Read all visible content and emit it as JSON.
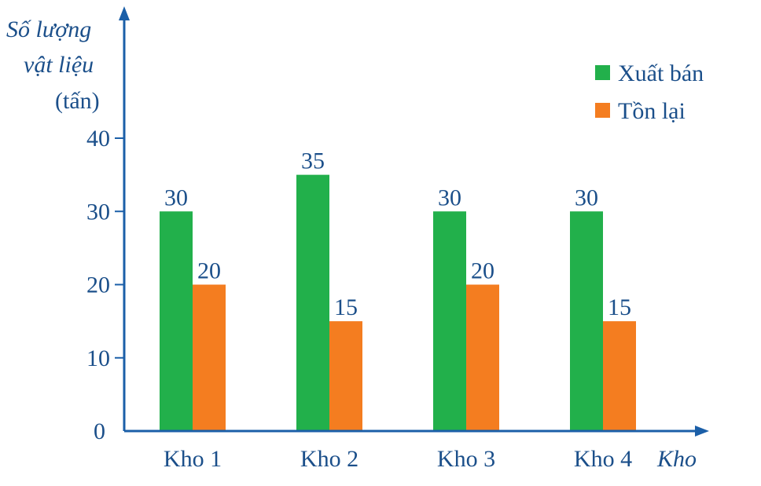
{
  "chart_data": {
    "type": "bar",
    "title": "",
    "ylabel_lines": [
      "Số lượng",
      "vật liệu",
      "(tấn)"
    ],
    "xlabel": "Kho",
    "categories": [
      "Kho 1",
      "Kho 2",
      "Kho 3",
      "Kho 4"
    ],
    "series": [
      {
        "name": "Xuất bán",
        "color": "#22b04b",
        "values": [
          30,
          35,
          30,
          30
        ]
      },
      {
        "name": "Tồn lại",
        "color": "#f47d20",
        "values": [
          20,
          15,
          20,
          15
        ]
      }
    ],
    "ylim": [
      0,
      40
    ],
    "yticks": [
      "0",
      "10",
      "20",
      "30",
      "40"
    ],
    "legend_position": "top-right",
    "axis_color": "#1b5fa8",
    "grid": false
  }
}
